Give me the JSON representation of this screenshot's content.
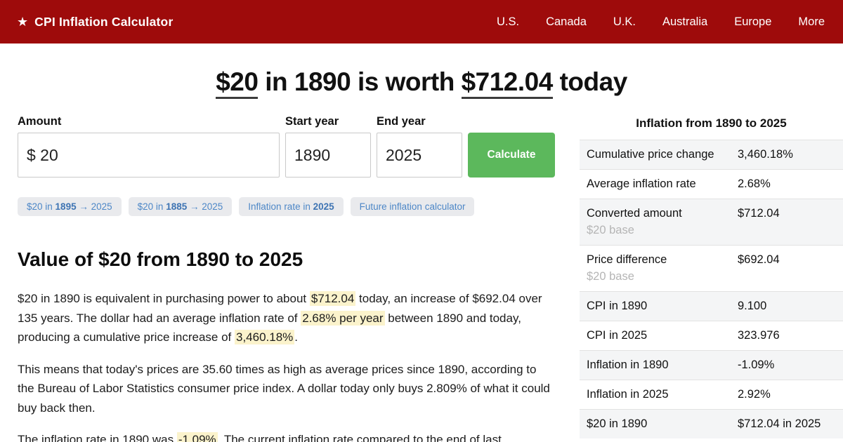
{
  "colors": {
    "header_red": "#9e0b0b",
    "button_green": "#5cb85c",
    "highlight_yellow": "#fbf3cc",
    "chip_blue": "#4d87c7"
  },
  "header": {
    "star_icon": "★",
    "brand": "CPI Inflation Calculator",
    "nav": [
      "U.S.",
      "Canada",
      "U.K.",
      "Australia",
      "Europe",
      "More"
    ]
  },
  "hero": {
    "amount": "$20",
    "middle": " in 1890 is worth ",
    "worth": "$712.04",
    "tail": " today"
  },
  "form": {
    "amount_label": "Amount",
    "amount_value": "$ 20",
    "start_label": "Start year",
    "start_value": "1890",
    "end_label": "End year",
    "end_value": "2025",
    "calculate_label": "Calculate"
  },
  "chips": [
    {
      "prefix": "$20 in ",
      "bold": "1895",
      "suffix": " → 2025"
    },
    {
      "prefix": "$20 in ",
      "bold": "1885",
      "suffix": " → 2025"
    },
    {
      "prefix": "Inflation rate in ",
      "bold": "2025",
      "suffix": ""
    },
    {
      "prefix": "Future inflation calculator",
      "bold": "",
      "suffix": ""
    }
  ],
  "article": {
    "heading": "Value of $20 from 1890 to 2025",
    "p1": {
      "s1": "$20 in 1890 is equivalent in purchasing power to about ",
      "h1": "$712.04",
      "s2": " today, an increase of $692.04 over 135 years. The dollar had an average inflation rate of ",
      "h2": "2.68% per year",
      "s3": " between 1890 and today, producing a cumulative price increase of ",
      "h3": "3,460.18%",
      "s4": "."
    },
    "p2": "This means that today's prices are 35.60 times as high as average prices since 1890, according to the Bureau of Labor Statistics consumer price index. A dollar today only buys 2.809% of what it could buy back then.",
    "p3": {
      "s1": "The inflation rate in 1890 was ",
      "h1": "-1.09%",
      "s2": ". The current inflation rate compared to the end of last"
    }
  },
  "stats": {
    "title": "Inflation from 1890 to 2025",
    "rows": [
      {
        "label": "Cumulative price change",
        "sub": "",
        "value": "3,460.18%"
      },
      {
        "label": "Average inflation rate",
        "sub": "",
        "value": "2.68%"
      },
      {
        "label": "Converted amount",
        "sub": "$20 base",
        "value": "$712.04"
      },
      {
        "label": "Price difference",
        "sub": "$20 base",
        "value": "$692.04"
      },
      {
        "label": "CPI in 1890",
        "sub": "",
        "value": "9.100"
      },
      {
        "label": "CPI in 2025",
        "sub": "",
        "value": "323.976"
      },
      {
        "label": "Inflation in 1890",
        "sub": "",
        "value": "-1.09%"
      },
      {
        "label": "Inflation in 2025",
        "sub": "",
        "value": "2.92%"
      },
      {
        "label": "$20 in 1890",
        "sub": "",
        "value": "$712.04 in 2025"
      }
    ]
  }
}
